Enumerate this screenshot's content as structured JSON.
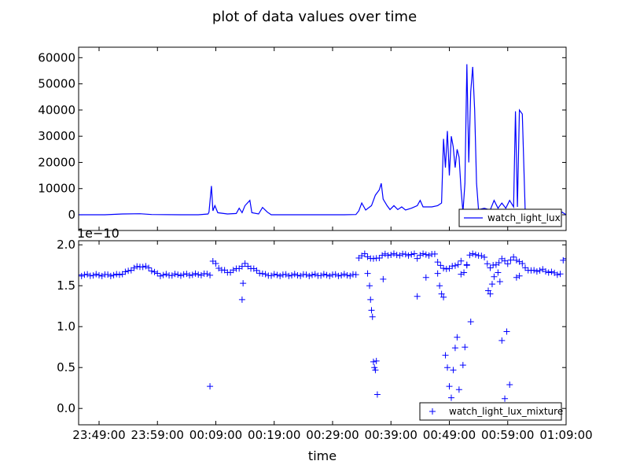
{
  "chart_data": {
    "title": "plot of data values over time",
    "xlabel": "time",
    "x_ticks": [
      "23:49:00",
      "23:59:00",
      "00:09:00",
      "00:19:00",
      "00:29:00",
      "00:39:00",
      "00:49:00",
      "00:59:00",
      "01:09:00"
    ],
    "x_range": [
      "23:45:30",
      "01:09:00"
    ],
    "top": {
      "type": "line",
      "legend": "watch_light_lux",
      "legend_position": "lower-right",
      "ylim": [
        -6000,
        64000
      ],
      "y_ticks": [
        "0",
        "10000",
        "20000",
        "30000",
        "40000",
        "50000",
        "60000"
      ],
      "series": [
        {
          "name": "watch_light_lux",
          "color": "#0000ff",
          "points": [
            [
              "23:45:30",
              0
            ],
            [
              "23:50:00",
              0
            ],
            [
              "23:53:00",
              300
            ],
            [
              "23:56:00",
              400
            ],
            [
              "23:58:00",
              100
            ],
            [
              "00:03:00",
              0
            ],
            [
              "00:06:00",
              0
            ],
            [
              "00:07:40",
              300
            ],
            [
              "00:07:50",
              1000
            ],
            [
              "00:08:15",
              11000
            ],
            [
              "00:08:30",
              1500
            ],
            [
              "00:08:50",
              3500
            ],
            [
              "00:09:20",
              800
            ],
            [
              "00:11:00",
              300
            ],
            [
              "00:12:30",
              500
            ],
            [
              "00:13:00",
              2500
            ],
            [
              "00:13:30",
              800
            ],
            [
              "00:14:00",
              3500
            ],
            [
              "00:14:50",
              5500
            ],
            [
              "00:15:10",
              800
            ],
            [
              "00:16:20",
              300
            ],
            [
              "00:17:00",
              2800
            ],
            [
              "00:17:50",
              1000
            ],
            [
              "00:18:30",
              0
            ],
            [
              "00:25:00",
              0
            ],
            [
              "00:31:00",
              0
            ],
            [
              "00:33:00",
              100
            ],
            [
              "00:33:30",
              1500
            ],
            [
              "00:34:00",
              4500
            ],
            [
              "00:34:40",
              1800
            ],
            [
              "00:35:40",
              3500
            ],
            [
              "00:36:20",
              7500
            ],
            [
              "00:37:00",
              9500
            ],
            [
              "00:37:20",
              12000
            ],
            [
              "00:37:40",
              6000
            ],
            [
              "00:38:20",
              3500
            ],
            [
              "00:38:50",
              2000
            ],
            [
              "00:39:30",
              3500
            ],
            [
              "00:40:10",
              2000
            ],
            [
              "00:40:50",
              3000
            ],
            [
              "00:41:30",
              1800
            ],
            [
              "00:42:30",
              2500
            ],
            [
              "00:43:30",
              3500
            ],
            [
              "00:44:00",
              5500
            ],
            [
              "00:44:30",
              3000
            ],
            [
              "00:46:00",
              3000
            ],
            [
              "00:47:00",
              3500
            ],
            [
              "00:47:40",
              4500
            ],
            [
              "00:48:00",
              29000
            ],
            [
              "00:48:20",
              18000
            ],
            [
              "00:48:40",
              32000
            ],
            [
              "00:49:00",
              15000
            ],
            [
              "00:49:20",
              30000
            ],
            [
              "00:49:40",
              26000
            ],
            [
              "00:50:00",
              18000
            ],
            [
              "00:50:20",
              25000
            ],
            [
              "00:50:40",
              22000
            ],
            [
              "00:51:00",
              10000
            ],
            [
              "00:51:20",
              1000
            ],
            [
              "00:51:40",
              12000
            ],
            [
              "00:52:00",
              57500
            ],
            [
              "00:52:20",
              20000
            ],
            [
              "00:52:40",
              47000
            ],
            [
              "00:53:00",
              56500
            ],
            [
              "00:53:20",
              40000
            ],
            [
              "00:53:40",
              12000
            ],
            [
              "00:54:00",
              2000
            ],
            [
              "00:55:00",
              2500
            ],
            [
              "00:56:00",
              1800
            ],
            [
              "00:56:40",
              5500
            ],
            [
              "00:57:20",
              2500
            ],
            [
              "00:58:00",
              4500
            ],
            [
              "00:58:40",
              2500
            ],
            [
              "00:59:20",
              5500
            ],
            [
              "01:00:00",
              3000
            ],
            [
              "01:00:20",
              39500
            ],
            [
              "01:00:40",
              3000
            ],
            [
              "01:01:00",
              40000
            ],
            [
              "01:01:30",
              38500
            ],
            [
              "01:02:00",
              1000
            ],
            [
              "01:02:20",
              0
            ],
            [
              "01:07:40",
              0
            ],
            [
              "01:08:20",
              1000
            ],
            [
              "01:09:00",
              0
            ]
          ]
        }
      ]
    },
    "bottom": {
      "type": "scatter",
      "legend": "watch_light_lux_mixture",
      "legend_position": "lower-right",
      "marker": "+",
      "color": "#0000ff",
      "ylim": [
        -0.2,
        2.05
      ],
      "y_ticks": [
        "0.0",
        "0.5",
        "1.0",
        "1.5",
        "2.0"
      ],
      "y_multiplier": "1e−10",
      "baseline": [
        [
          "23:45:30",
          1.63
        ],
        [
          "23:52:00",
          1.63
        ],
        [
          "23:53:30",
          1.66
        ],
        [
          "23:54:30",
          1.7
        ],
        [
          "23:56:00",
          1.74
        ],
        [
          "23:57:30",
          1.72
        ],
        [
          "23:58:30",
          1.66
        ],
        [
          "23:59:30",
          1.63
        ],
        [
          "00:08:00",
          1.64
        ],
        [
          "00:08:30",
          1.8
        ],
        [
          "00:09:30",
          1.72
        ],
        [
          "00:11:00",
          1.66
        ],
        [
          "00:12:30",
          1.7
        ],
        [
          "00:14:00",
          1.76
        ],
        [
          "00:15:00",
          1.72
        ],
        [
          "00:16:00",
          1.68
        ],
        [
          "00:17:30",
          1.63
        ],
        [
          "00:33:00",
          1.63
        ],
        [
          "00:33:30",
          1.85
        ],
        [
          "00:34:30",
          1.88
        ],
        [
          "00:36:00",
          1.82
        ],
        [
          "00:38:00",
          1.88
        ],
        [
          "00:43:00",
          1.88
        ],
        [
          "00:43:30",
          1.84
        ],
        [
          "00:44:00",
          1.88
        ],
        [
          "00:46:30",
          1.88
        ],
        [
          "00:47:00",
          1.8
        ],
        [
          "00:48:00",
          1.7
        ],
        [
          "00:50:00",
          1.74
        ],
        [
          "00:51:00",
          1.8
        ],
        [
          "00:51:30",
          1.65
        ],
        [
          "00:52:30",
          1.88
        ],
        [
          "00:54:00",
          1.88
        ],
        [
          "00:55:00",
          1.84
        ],
        [
          "00:56:00",
          1.72
        ],
        [
          "00:57:00",
          1.76
        ],
        [
          "00:58:00",
          1.82
        ],
        [
          "00:59:00",
          1.78
        ],
        [
          "01:00:00",
          1.84
        ],
        [
          "01:01:00",
          1.8
        ],
        [
          "01:02:00",
          1.72
        ],
        [
          "01:03:00",
          1.68
        ],
        [
          "01:05:00",
          1.69
        ],
        [
          "01:06:30",
          1.66
        ],
        [
          "01:08:00",
          1.64
        ],
        [
          "01:08:30",
          1.8
        ],
        [
          "01:09:00",
          1.84
        ]
      ],
      "outliers": [
        [
          "00:08:00",
          0.27
        ],
        [
          "00:13:30",
          1.33
        ],
        [
          "00:13:40",
          1.53
        ],
        [
          "00:35:00",
          1.65
        ],
        [
          "00:35:20",
          1.5
        ],
        [
          "00:35:30",
          1.33
        ],
        [
          "00:35:40",
          1.2
        ],
        [
          "00:35:50",
          1.12
        ],
        [
          "00:36:00",
          0.57
        ],
        [
          "00:36:10",
          0.5
        ],
        [
          "00:36:20",
          0.47
        ],
        [
          "00:36:30",
          0.58
        ],
        [
          "00:36:40",
          0.17
        ],
        [
          "00:37:40",
          1.58
        ],
        [
          "00:43:30",
          1.37
        ],
        [
          "00:45:00",
          1.6
        ],
        [
          "00:47:00",
          1.65
        ],
        [
          "00:47:20",
          1.5
        ],
        [
          "00:47:40",
          1.4
        ],
        [
          "00:48:00",
          1.36
        ],
        [
          "00:48:20",
          0.65
        ],
        [
          "00:48:40",
          0.5
        ],
        [
          "00:49:00",
          0.27
        ],
        [
          "00:49:20",
          0.13
        ],
        [
          "00:49:40",
          0.47
        ],
        [
          "00:50:00",
          0.74
        ],
        [
          "00:50:20",
          0.87
        ],
        [
          "00:50:40",
          0.23
        ],
        [
          "00:51:00",
          1.64
        ],
        [
          "00:51:20",
          0.53
        ],
        [
          "00:51:40",
          0.75
        ],
        [
          "00:52:00",
          1.75
        ],
        [
          "00:52:40",
          1.06
        ],
        [
          "00:55:40",
          1.44
        ],
        [
          "00:56:00",
          1.4
        ],
        [
          "00:56:20",
          1.52
        ],
        [
          "00:56:40",
          1.61
        ],
        [
          "00:57:20",
          1.66
        ],
        [
          "00:57:40",
          1.55
        ],
        [
          "00:58:00",
          0.83
        ],
        [
          "00:58:30",
          0.12
        ],
        [
          "00:58:50",
          0.94
        ],
        [
          "00:59:20",
          0.29
        ],
        [
          "01:00:30",
          1.6
        ],
        [
          "01:01:00",
          1.62
        ]
      ]
    }
  }
}
